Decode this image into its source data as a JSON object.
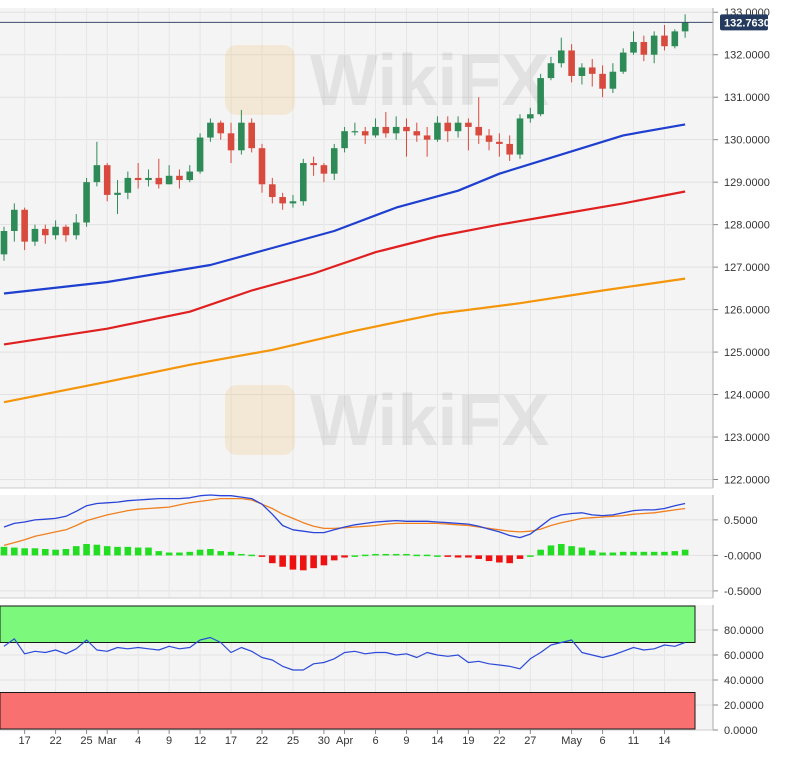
{
  "chart_data": [
    {
      "type": "candlestick",
      "colors": {
        "up": "#2e8b57",
        "down": "#d84a3d",
        "ma50": "#1e3fcf",
        "ma100": "#e02020",
        "ma200": "#f5950a",
        "last_line": "#3a4a6b"
      },
      "last_price": 132.763,
      "last_price_label": "132.7630",
      "ylim": [
        121.8,
        133.1
      ],
      "yticks": [
        "133.0000",
        "132.0000",
        "131.0000",
        "130.0000",
        "129.0000",
        "128.0000",
        "127.0000",
        "126.0000",
        "125.0000",
        "124.0000",
        "123.0000",
        "122.0000"
      ],
      "x_labels": [
        {
          "i": 2,
          "text": "17"
        },
        {
          "i": 5,
          "text": "22"
        },
        {
          "i": 8,
          "text": "25"
        },
        {
          "i": 10,
          "text": "Mar"
        },
        {
          "i": 13,
          "text": "4"
        },
        {
          "i": 16,
          "text": "9"
        },
        {
          "i": 19,
          "text": "12"
        },
        {
          "i": 22,
          "text": "17"
        },
        {
          "i": 25,
          "text": "22"
        },
        {
          "i": 28,
          "text": "25"
        },
        {
          "i": 31,
          "text": "30"
        },
        {
          "i": 33,
          "text": "Apr"
        },
        {
          "i": 36,
          "text": "6"
        },
        {
          "i": 39,
          "text": "9"
        },
        {
          "i": 42,
          "text": "14"
        },
        {
          "i": 45,
          "text": "19"
        },
        {
          "i": 48,
          "text": "22"
        },
        {
          "i": 51,
          "text": "27"
        },
        {
          "i": 55,
          "text": "May"
        },
        {
          "i": 58,
          "text": "6"
        },
        {
          "i": 61,
          "text": "11"
        },
        {
          "i": 64,
          "text": "14"
        }
      ],
      "candles": [
        [
          127.3,
          127.85,
          127.95,
          127.15
        ],
        [
          127.85,
          128.35,
          128.5,
          127.6
        ],
        [
          128.35,
          127.6,
          128.4,
          127.4
        ],
        [
          127.6,
          127.9,
          128.0,
          127.5
        ],
        [
          127.9,
          127.75,
          128.0,
          127.55
        ],
        [
          127.75,
          127.95,
          128.1,
          127.65
        ],
        [
          127.95,
          127.75,
          128.0,
          127.6
        ],
        [
          127.75,
          128.05,
          128.25,
          127.65
        ],
        [
          128.05,
          129.0,
          129.1,
          127.95
        ],
        [
          129.0,
          129.4,
          129.95,
          128.9
        ],
        [
          129.4,
          128.7,
          129.45,
          128.55
        ],
        [
          128.7,
          128.75,
          129.05,
          128.25
        ],
        [
          128.75,
          129.1,
          129.25,
          128.6
        ],
        [
          129.1,
          129.05,
          129.45,
          128.85
        ],
        [
          129.05,
          129.1,
          129.3,
          128.9
        ],
        [
          129.1,
          128.95,
          129.55,
          128.85
        ],
        [
          128.95,
          129.15,
          129.4,
          128.95
        ],
        [
          129.15,
          129.05,
          129.3,
          128.85
        ],
        [
          129.05,
          129.25,
          129.4,
          129.0
        ],
        [
          129.25,
          130.05,
          130.15,
          129.2
        ],
        [
          130.05,
          130.4,
          130.5,
          129.95
        ],
        [
          130.4,
          130.15,
          130.45,
          130.0
        ],
        [
          130.15,
          129.75,
          130.4,
          129.45
        ],
        [
          129.75,
          130.4,
          130.7,
          129.65
        ],
        [
          130.4,
          129.8,
          130.5,
          129.7
        ],
        [
          129.8,
          128.95,
          129.9,
          128.75
        ],
        [
          128.95,
          128.65,
          129.1,
          128.5
        ],
        [
          128.65,
          128.5,
          128.75,
          128.35
        ],
        [
          128.5,
          128.55,
          128.7,
          128.4
        ],
        [
          128.55,
          129.45,
          129.55,
          128.45
        ],
        [
          129.45,
          129.4,
          129.6,
          129.15
        ],
        [
          129.4,
          129.2,
          129.45,
          129.0
        ],
        [
          129.2,
          129.8,
          129.9,
          129.05
        ],
        [
          129.8,
          130.2,
          130.3,
          129.7
        ],
        [
          130.2,
          130.2,
          130.4,
          130.1
        ],
        [
          130.2,
          130.1,
          130.3,
          129.9
        ],
        [
          130.1,
          130.3,
          130.5,
          130.05
        ],
        [
          130.3,
          130.15,
          130.65,
          130.05
        ],
        [
          130.15,
          130.3,
          130.55,
          130.0
        ],
        [
          130.3,
          130.2,
          130.5,
          129.6
        ],
        [
          130.2,
          130.1,
          130.4,
          129.95
        ],
        [
          130.1,
          130.0,
          130.3,
          129.6
        ],
        [
          130.0,
          130.4,
          130.55,
          129.95
        ],
        [
          130.4,
          130.2,
          130.55,
          129.95
        ],
        [
          130.2,
          130.4,
          130.55,
          130.05
        ],
        [
          130.4,
          130.3,
          130.5,
          129.75
        ],
        [
          130.3,
          130.1,
          131.0,
          129.9
        ],
        [
          130.1,
          129.95,
          130.25,
          129.75
        ],
        [
          129.95,
          129.9,
          130.15,
          129.6
        ],
        [
          129.9,
          129.65,
          130.1,
          129.5
        ],
        [
          129.65,
          130.5,
          130.6,
          129.55
        ],
        [
          130.5,
          130.6,
          130.75,
          130.4
        ],
        [
          130.6,
          131.45,
          131.55,
          130.55
        ],
        [
          131.45,
          131.8,
          131.95,
          131.4
        ],
        [
          131.8,
          132.1,
          132.4,
          131.7
        ],
        [
          132.1,
          131.5,
          132.25,
          131.35
        ],
        [
          131.5,
          131.7,
          131.8,
          131.3
        ],
        [
          131.7,
          131.55,
          131.9,
          131.25
        ],
        [
          131.55,
          131.2,
          131.75,
          131.0
        ],
        [
          131.2,
          131.6,
          131.8,
          131.1
        ],
        [
          131.6,
          132.05,
          132.15,
          131.55
        ],
        [
          132.05,
          132.3,
          132.55,
          132.0
        ],
        [
          132.3,
          132.0,
          132.45,
          131.85
        ],
        [
          132.0,
          132.45,
          132.55,
          131.8
        ],
        [
          132.45,
          132.2,
          132.7,
          132.1
        ],
        [
          132.2,
          132.55,
          132.6,
          132.15
        ],
        [
          132.55,
          132.76,
          132.95,
          132.4
        ]
      ],
      "ma50": [
        [
          0,
          126.38
        ],
        [
          10,
          126.65
        ],
        [
          20,
          127.05
        ],
        [
          26,
          127.45
        ],
        [
          32,
          127.85
        ],
        [
          38,
          128.4
        ],
        [
          44,
          128.8
        ],
        [
          48,
          129.2
        ],
        [
          52,
          129.5
        ],
        [
          56,
          129.8
        ],
        [
          60,
          130.1
        ],
        [
          66,
          130.36
        ]
      ],
      "ma100": [
        [
          0,
          125.18
        ],
        [
          10,
          125.55
        ],
        [
          18,
          125.95
        ],
        [
          24,
          126.45
        ],
        [
          30,
          126.85
        ],
        [
          36,
          127.35
        ],
        [
          42,
          127.72
        ],
        [
          48,
          128.0
        ],
        [
          54,
          128.25
        ],
        [
          60,
          128.5
        ],
        [
          66,
          128.78
        ]
      ],
      "ma200": [
        [
          0,
          123.82
        ],
        [
          10,
          124.3
        ],
        [
          18,
          124.7
        ],
        [
          26,
          125.05
        ],
        [
          34,
          125.5
        ],
        [
          42,
          125.9
        ],
        [
          50,
          126.15
        ],
        [
          58,
          126.45
        ],
        [
          66,
          126.73
        ]
      ]
    },
    {
      "type": "macd",
      "ylim": [
        -0.6,
        0.85
      ],
      "yticks": [
        "0.5000",
        "-0.0000",
        "-0.5000"
      ],
      "macd_line": [
        0.4,
        0.45,
        0.47,
        0.5,
        0.51,
        0.52,
        0.55,
        0.62,
        0.7,
        0.73,
        0.74,
        0.75,
        0.77,
        0.78,
        0.79,
        0.8,
        0.8,
        0.8,
        0.81,
        0.84,
        0.85,
        0.84,
        0.84,
        0.82,
        0.8,
        0.72,
        0.58,
        0.42,
        0.36,
        0.34,
        0.32,
        0.32,
        0.36,
        0.4,
        0.43,
        0.45,
        0.47,
        0.48,
        0.49,
        0.48,
        0.48,
        0.48,
        0.47,
        0.46,
        0.45,
        0.44,
        0.41,
        0.37,
        0.33,
        0.28,
        0.25,
        0.3,
        0.41,
        0.52,
        0.57,
        0.59,
        0.6,
        0.57,
        0.56,
        0.57,
        0.6,
        0.63,
        0.64,
        0.64,
        0.66,
        0.7,
        0.73
      ],
      "signal_line": [
        0.14,
        0.18,
        0.22,
        0.27,
        0.3,
        0.33,
        0.36,
        0.42,
        0.49,
        0.53,
        0.57,
        0.6,
        0.63,
        0.65,
        0.66,
        0.67,
        0.68,
        0.71,
        0.74,
        0.76,
        0.78,
        0.8,
        0.8,
        0.8,
        0.78,
        0.72,
        0.66,
        0.58,
        0.52,
        0.46,
        0.41,
        0.38,
        0.38,
        0.39,
        0.4,
        0.41,
        0.42,
        0.44,
        0.45,
        0.45,
        0.45,
        0.45,
        0.45,
        0.44,
        0.43,
        0.42,
        0.4,
        0.38,
        0.36,
        0.34,
        0.33,
        0.34,
        0.37,
        0.42,
        0.46,
        0.49,
        0.52,
        0.53,
        0.54,
        0.55,
        0.56,
        0.58,
        0.59,
        0.6,
        0.62,
        0.64,
        0.66
      ],
      "histogram": [
        0.12,
        0.11,
        0.1,
        0.1,
        0.09,
        0.08,
        0.09,
        0.13,
        0.16,
        0.15,
        0.13,
        0.12,
        0.12,
        0.11,
        0.11,
        0.06,
        0.04,
        0.04,
        0.05,
        0.08,
        0.09,
        0.06,
        0.05,
        0.02,
        0.01,
        -0.02,
        -0.11,
        -0.16,
        -0.2,
        -0.21,
        -0.18,
        -0.14,
        -0.07,
        -0.03,
        0.0,
        0.01,
        0.02,
        0.02,
        0.02,
        0.02,
        0.01,
        0.01,
        0.0,
        -0.01,
        -0.03,
        -0.03,
        -0.05,
        -0.08,
        -0.1,
        -0.11,
        -0.05,
        0.0,
        0.08,
        0.14,
        0.16,
        0.13,
        0.11,
        0.07,
        0.04,
        0.04,
        0.05,
        0.05,
        0.05,
        0.05,
        0.05,
        0.06,
        0.08
      ]
    },
    {
      "type": "rsi",
      "ylim": [
        0,
        100
      ],
      "yticks": [
        "80.0000",
        "60.0000",
        "40.0000",
        "20.0000",
        "0.0000"
      ],
      "overbought": 70,
      "oversold": 30,
      "colors": {
        "overbought_zone": "#7cf87c",
        "oversold_zone": "#f97070",
        "line": "#2b4ad9"
      },
      "values": [
        67,
        73,
        61,
        63,
        62,
        64,
        61,
        65,
        72,
        64,
        63,
        66,
        65,
        66,
        65,
        64,
        67,
        65,
        66,
        72,
        74,
        70,
        62,
        66,
        63,
        58,
        56,
        51,
        48,
        48,
        53,
        54,
        57,
        62,
        63,
        61,
        62,
        62,
        60,
        61,
        58,
        62,
        60,
        59,
        60,
        54,
        55,
        53,
        52,
        51,
        49,
        57,
        62,
        68,
        70,
        72,
        62,
        60,
        58,
        60,
        63,
        66,
        64,
        65,
        68,
        67,
        70
      ]
    }
  ]
}
